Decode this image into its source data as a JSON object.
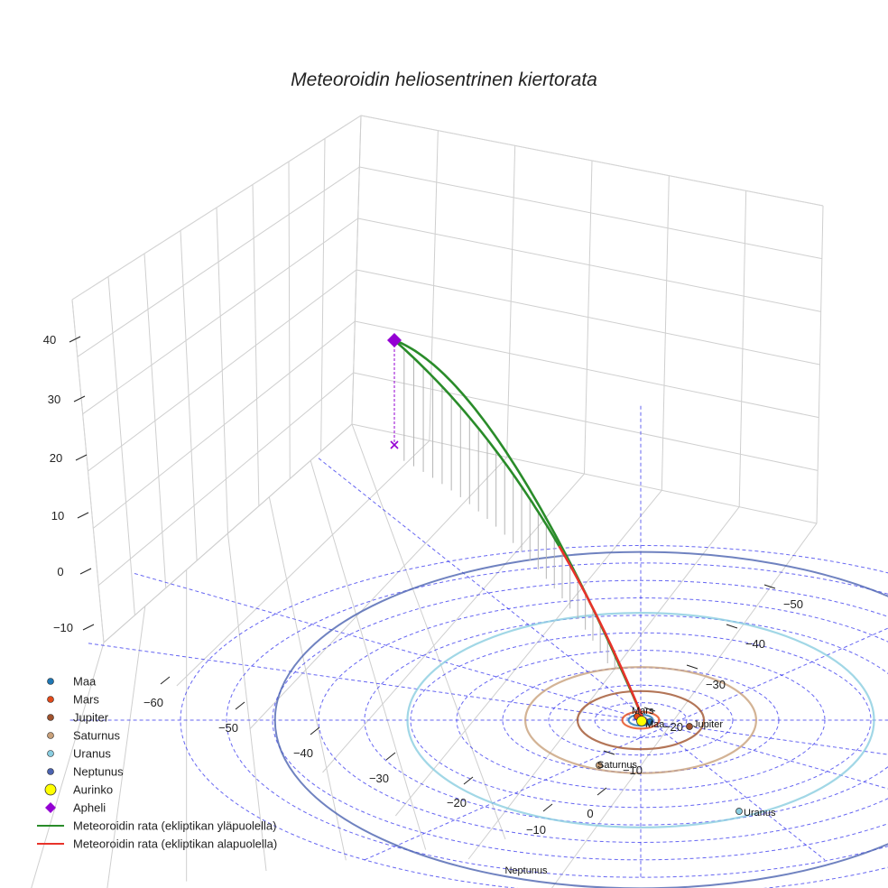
{
  "chart_data": {
    "type": "scatter",
    "title": "Meteoroidin heliosentrinen kiertorata",
    "z_ticks": [
      "40",
      "30",
      "20",
      "10",
      "0",
      "−10"
    ],
    "x_ticks": [
      "−60",
      "−50",
      "−40",
      "−30",
      "−20",
      "−10",
      "0"
    ],
    "y_ticks": [
      "−50",
      "−40",
      "−30",
      "−20",
      "−10"
    ],
    "planets": [
      {
        "name": "Maa",
        "orbit_au": 1.0,
        "color": "#1f77b4",
        "label": "Maa"
      },
      {
        "name": "Mars",
        "orbit_au": 1.52,
        "color": "#e34a1a",
        "label": "Mars"
      },
      {
        "name": "Jupiter",
        "orbit_au": 5.2,
        "color": "#a0522d",
        "label": "Jupiter"
      },
      {
        "name": "Saturnus",
        "orbit_au": 9.5,
        "color": "#c8a07a",
        "label": "Saturnus"
      },
      {
        "name": "Uranus",
        "orbit_au": 19.2,
        "color": "#89cde0",
        "label": "Uranus"
      },
      {
        "name": "Neptunus",
        "orbit_au": 30.1,
        "color": "#4b63b0",
        "label": "Neptunus"
      }
    ],
    "series": [
      {
        "name": "Meteoroidin rata (ekliptikan yläpuolella)",
        "color": "#2a8c2a"
      },
      {
        "name": "Meteoroidin rata (ekliptikan alapuolella)",
        "color": "#e8332a"
      }
    ],
    "aphelion": {
      "label": "Apheli",
      "z": 40,
      "color": "#9400d3"
    },
    "sun": {
      "label": "Aurinko",
      "color": "#ffff00"
    },
    "legend": [
      {
        "label": "Maa",
        "kind": "dot",
        "color": "#1f77b4"
      },
      {
        "label": "Mars",
        "kind": "dot",
        "color": "#e34a1a"
      },
      {
        "label": "Jupiter",
        "kind": "dot",
        "color": "#a0522d"
      },
      {
        "label": "Saturnus",
        "kind": "dot",
        "color": "#c8a07a"
      },
      {
        "label": "Uranus",
        "kind": "dot",
        "color": "#89cde0"
      },
      {
        "label": "Neptunus",
        "kind": "dot",
        "color": "#4b63b0"
      },
      {
        "label": "Aurinko",
        "kind": "bigdot",
        "color": "#ffff00"
      },
      {
        "label": "Apheli",
        "kind": "diamond",
        "color": "#9400d3"
      },
      {
        "label": "Meteoroidin rata (ekliptikan yläpuolella)",
        "kind": "line",
        "color": "#2a8c2a"
      },
      {
        "label": "Meteoroidin rata (ekliptikan alapuolella)",
        "kind": "line",
        "color": "#e8332a"
      }
    ],
    "legend_position": "lower-left",
    "grid": true
  }
}
